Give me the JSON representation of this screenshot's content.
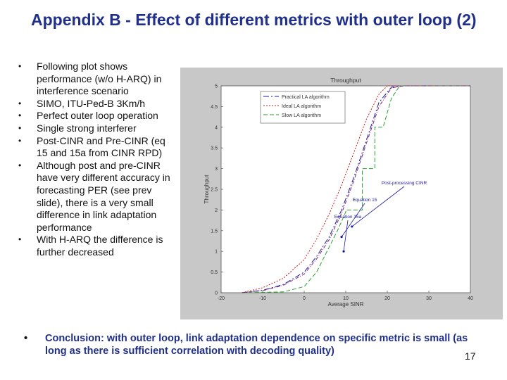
{
  "slide": {
    "title": "Appendix B - Effect of different metrics with outer loop (2)",
    "bullets": [
      "Following plot shows performance (w/o H-ARQ) in interference scenario",
      "SIMO, ITU-Ped-B 3Km/h",
      "Perfect outer loop operation",
      "Single strong interferer",
      "Post-CINR and Pre-CINR (eq 15 and 15a from CINR RPD)",
      "Although post and pre-CINR have very different accuracy in forecasting PER (see prev slide), there is a very small difference in link adaptation performance",
      "With H-ARQ the difference is further decreased"
    ],
    "conclusion": "Conclusion: with outer loop, link adaptation dependence on specific metric is small (as long as there is sufficient correlation with decoding quality)",
    "page_number": "17"
  },
  "chart_data": {
    "type": "line",
    "title": "Throughput",
    "xlabel": "Average SINR",
    "ylabel": "Throughput",
    "xlim": [
      -20,
      40
    ],
    "ylim": [
      0,
      5
    ],
    "xticks": [
      "-20",
      "-10",
      "0",
      "10",
      "20",
      "30",
      "40"
    ],
    "yticks": [
      "0",
      "0.5",
      "1",
      "1.5",
      "2",
      "2.5",
      "3",
      "3.5",
      "4",
      "4.5",
      "5"
    ],
    "grid": false,
    "legend_position": "top-left",
    "series": [
      {
        "name": "Practical LA algorithm",
        "color": "#1a1aa0",
        "dash": "8,3,2,3",
        "x": [
          -15,
          -10,
          -5,
          0,
          3,
          6,
          9,
          12,
          15,
          18,
          21,
          24,
          30,
          40
        ],
        "y": [
          0.0,
          0.06,
          0.2,
          0.5,
          0.88,
          1.35,
          2.0,
          2.8,
          3.7,
          4.6,
          4.97,
          5.0,
          5.0,
          5.0
        ]
      },
      {
        "name": "Ideal LA algorithm",
        "color": "#cc1a1a",
        "dash": "2,2",
        "x": [
          -15,
          -10,
          -5,
          0,
          3,
          6,
          9,
          12,
          15,
          18,
          20,
          24,
          30,
          40
        ],
        "y": [
          0.0,
          0.12,
          0.35,
          0.8,
          1.3,
          1.9,
          2.6,
          3.4,
          4.2,
          4.8,
          5.0,
          5.0,
          5.0,
          5.0
        ]
      },
      {
        "name": "Slow LA algorithm",
        "color": "#2aa02a",
        "dash": "6,3",
        "x": [
          -15,
          -5,
          0,
          3,
          6,
          8,
          10,
          10,
          14,
          14,
          17,
          17,
          19,
          21,
          23,
          40
        ],
        "y": [
          0.0,
          0.02,
          0.15,
          0.5,
          1.1,
          1.5,
          1.95,
          2.0,
          2.0,
          3.0,
          3.0,
          4.0,
          4.0,
          4.7,
          5.0,
          5.0
        ]
      },
      {
        "name": "",
        "color": "#7a2a7a",
        "dash": "5,2,1,2",
        "x": [
          -15,
          -10,
          -5,
          0,
          3,
          6,
          9,
          12,
          15,
          18,
          21,
          24,
          30,
          40
        ],
        "y": [
          0.0,
          0.05,
          0.18,
          0.45,
          0.82,
          1.28,
          1.92,
          2.72,
          3.62,
          4.5,
          4.95,
          5.0,
          5.0,
          5.0
        ]
      }
    ],
    "legend": [
      "Practical LA algorithm",
      "Ideal LA algorithm",
      "Slow LA algorithm"
    ],
    "annotations": [
      {
        "text": "Post-processing CINR",
        "x": 12.5,
        "y": 1.25
      },
      {
        "text": "Equation 15",
        "x": 12.5,
        "y": 1.45
      },
      {
        "text": "Equation 15a",
        "x": 12.5,
        "y": 1.05
      }
    ]
  }
}
